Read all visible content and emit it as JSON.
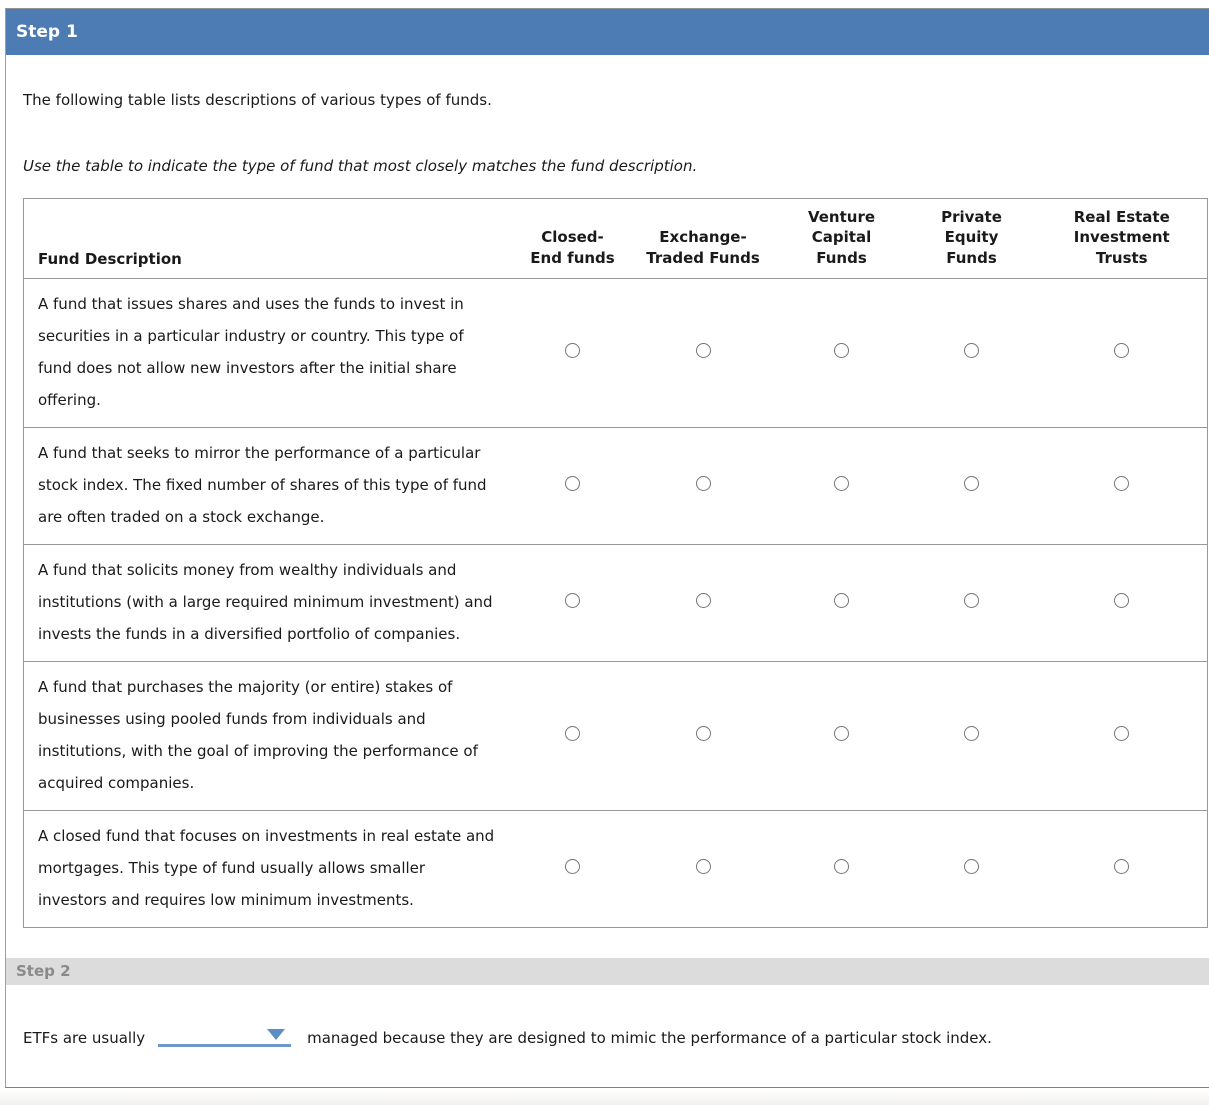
{
  "colors": {
    "step1-header-bg": "#4d7cb5",
    "step1-header-text": "#ffffff",
    "step2-header-bg": "#dcdcdc",
    "step2-header-text": "#8a8a8a",
    "dropdown-blue": "#6d99c9",
    "dropdown-arrow-blue": "#5d8fc2",
    "table-border": "#999999",
    "radio-border": "#757575"
  },
  "step1": {
    "title": "Step 1",
    "intro": "The following table lists descriptions of various types of funds.",
    "instruction": "Use the table to indicate the type of fund that most closely matches the fund description.",
    "table": {
      "description_header": "Fund Description",
      "fund_type_headers": [
        "Closed-\nEnd funds",
        "Exchange-\nTraded Funds",
        "Venture\nCapital\nFunds",
        "Private\nEquity\nFunds",
        "Real Estate\nInvestment\nTrusts"
      ],
      "rows": [
        {
          "description": "A fund that issues shares and uses the funds to invest in securities in a particular industry or country. This type of fund does not allow new investors after the initial share offering."
        },
        {
          "description": "A fund that seeks to mirror the performance of a particular stock index. The fixed number of shares of this type of fund are often traded on a stock exchange."
        },
        {
          "description": "A fund that solicits money from wealthy individuals and institutions (with a large required minimum investment) and invests the funds in a diversified portfolio of companies."
        },
        {
          "description": "A fund that purchases the majority (or entire) stakes of businesses using pooled funds from individuals and institutions, with the goal of improving the performance of acquired companies."
        },
        {
          "description": "A closed fund that focuses on investments in real estate and mortgages. This type of fund usually allows smaller investors and requires low minimum investments."
        }
      ]
    }
  },
  "step2": {
    "title": "Step 2",
    "sentence_prefix": "ETFs are usually",
    "dropdown_value": "",
    "sentence_suffix": "managed because they are designed to mimic the performance of a particular stock index."
  }
}
